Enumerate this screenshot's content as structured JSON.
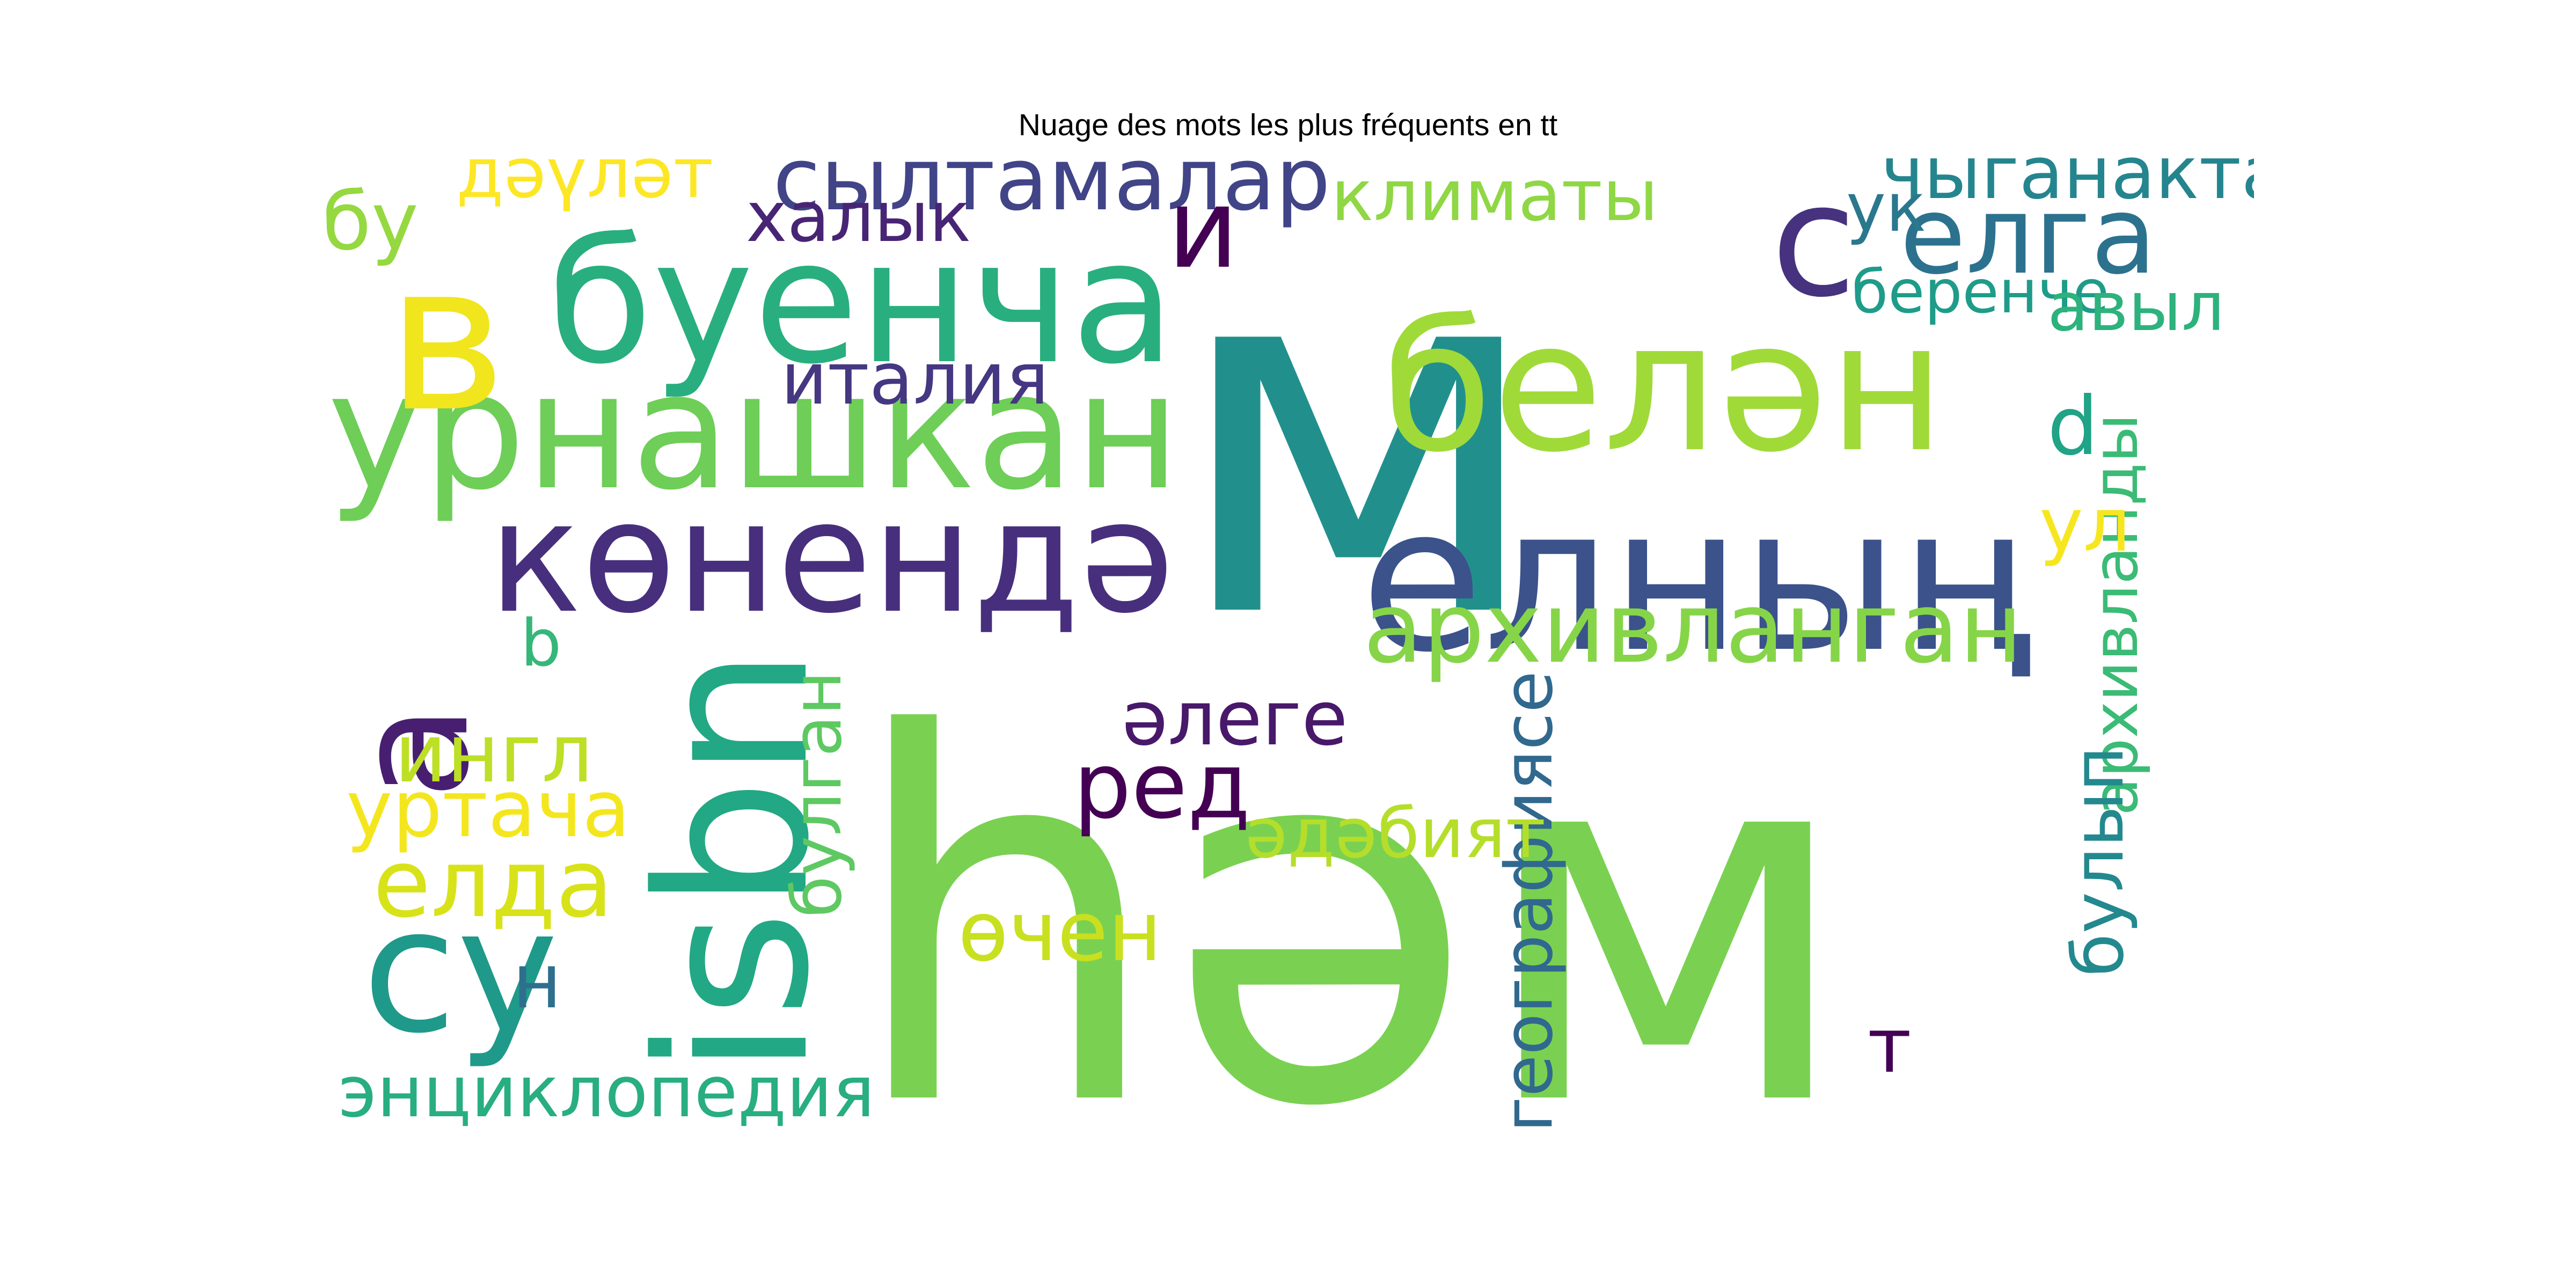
{
  "figure": {
    "title": "Nuage des mots les plus fréquents en tt"
  },
  "wordcloud": {
    "palette": "viridis",
    "background": "#ffffff",
    "words": [
      {
        "text": "һәм",
        "color": "#7ad151"
      },
      {
        "text": "м",
        "color": "#21908d"
      },
      {
        "text": "буенча",
        "color": "#29af7f"
      },
      {
        "text": "урнашкан",
        "color": "#6ece58"
      },
      {
        "text": "көнендә",
        "color": "#472f7d"
      },
      {
        "text": "белән",
        "color": "#a0da39"
      },
      {
        "text": "елның",
        "color": "#3b528b"
      },
      {
        "text": "isbn",
        "color": "#22a884"
      },
      {
        "text": "с",
        "color": "#46327e"
      },
      {
        "text": "в",
        "color": "#f1e51d"
      },
      {
        "text": "су",
        "color": "#1f998a"
      },
      {
        "text": "a",
        "color": "#481f70"
      },
      {
        "text": "сылтамалар",
        "color": "#414487"
      },
      {
        "text": "архивланган",
        "color": "#86d549"
      },
      {
        "text": "елга",
        "color": "#2c728e"
      },
      {
        "text": "и",
        "color": "#440154"
      },
      {
        "text": "чыганактан",
        "color": "#25858e"
      },
      {
        "text": "ук",
        "color": "#2a788e"
      },
      {
        "text": "климаты",
        "color": "#8fd744"
      },
      {
        "text": "дәүләт",
        "color": "#fde725"
      },
      {
        "text": "халык",
        "color": "#482475"
      },
      {
        "text": "бу",
        "color": "#95d840"
      },
      {
        "text": "италия",
        "color": "#453781"
      },
      {
        "text": "беренче",
        "color": "#1e9c89"
      },
      {
        "text": "авыл",
        "color": "#2db27d"
      },
      {
        "text": "d",
        "color": "#20a386"
      },
      {
        "text": "архивланды",
        "color": "#3bbb75"
      },
      {
        "text": "ул",
        "color": "#f6e620"
      },
      {
        "text": "булып",
        "color": "#23898e"
      },
      {
        "text": "географиясе",
        "color": "#31688e"
      },
      {
        "text": "т",
        "color": "#440154"
      },
      {
        "text": "әлеге",
        "color": "#48186a"
      },
      {
        "text": "ред",
        "color": "#440154"
      },
      {
        "text": "әдәбият",
        "color": "#b5de2b"
      },
      {
        "text": "өчен",
        "color": "#c8e020"
      },
      {
        "text": "булган",
        "color": "#5ec962"
      },
      {
        "text": "ингл",
        "color": "#bddf26"
      },
      {
        "text": "уртача",
        "color": "#f4e61e"
      },
      {
        "text": "елда",
        "color": "#d8e219"
      },
      {
        "text": "b",
        "color": "#35b779"
      },
      {
        "text": "н",
        "color": "#2e6f8e"
      },
      {
        "text": "энциклопедия",
        "color": "#28ae80"
      }
    ]
  }
}
